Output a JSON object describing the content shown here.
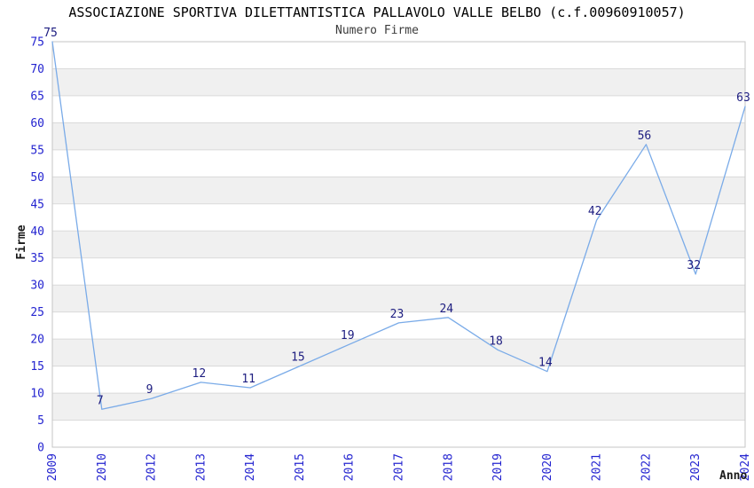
{
  "chart_data": {
    "type": "line",
    "title": "ASSOCIAZIONE SPORTIVA DILETTANTISTICA PALLAVOLO VALLE BELBO (c.f.00960910057)",
    "subtitle": "Numero Firme",
    "xlabel": "Anno",
    "ylabel": "Firme",
    "categories": [
      "2009",
      "2010",
      "2012",
      "2013",
      "2014",
      "2015",
      "2016",
      "2017",
      "2018",
      "2019",
      "2020",
      "2021",
      "2022",
      "2023",
      "2024"
    ],
    "values": [
      75,
      7,
      9,
      12,
      11,
      15,
      19,
      23,
      24,
      18,
      14,
      42,
      56,
      32,
      63
    ],
    "ylim": [
      0,
      75
    ],
    "y_ticks": [
      0,
      5,
      10,
      15,
      20,
      25,
      30,
      35,
      40,
      45,
      50,
      55,
      60,
      65,
      70,
      75
    ],
    "grid": "horizontal",
    "banded_background": true,
    "legend": "none",
    "colors": {
      "line": "#7aabe8",
      "tick_labels": "#2424d0",
      "data_labels": "#1d1d80",
      "band": "#f0f0f0",
      "band_alt": "#ffffff",
      "gridline": "#dadada",
      "plot_border": "#c6c6c6"
    }
  }
}
